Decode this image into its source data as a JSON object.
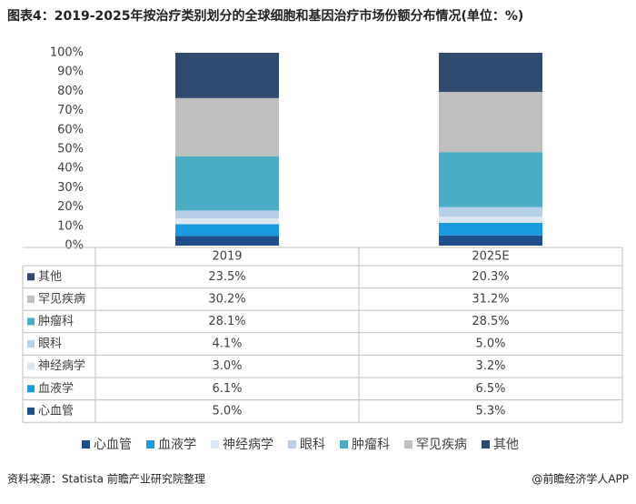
{
  "chart_data": {
    "type": "stacked_bar",
    "title": "图表4：2019-2025年按治疗类别划分的全球细胞和基因治疗市场份额分布情况(单位：%)",
    "categories": [
      "2019",
      "2025E"
    ],
    "series": [
      {
        "name": "心血管",
        "color": "#1f4e8c",
        "values": [
          5.0,
          5.3
        ],
        "value_labels": [
          "5.0%",
          "5.3%"
        ]
      },
      {
        "name": "血液学",
        "color": "#1a9be0",
        "values": [
          6.1,
          6.5
        ],
        "value_labels": [
          "6.1%",
          "6.5%"
        ]
      },
      {
        "name": "神经病学",
        "color": "#dde7f3",
        "values": [
          3.0,
          3.2
        ],
        "value_labels": [
          "3.0%",
          "3.2%"
        ]
      },
      {
        "name": "眼科",
        "color": "#b7cfe9",
        "values": [
          4.1,
          5.0
        ],
        "value_labels": [
          "4.1%",
          "5.0%"
        ]
      },
      {
        "name": "肿瘤科",
        "color": "#4bacc6",
        "values": [
          28.1,
          28.5
        ],
        "value_labels": [
          "28.1%",
          "28.5%"
        ]
      },
      {
        "name": "罕见疾病",
        "color": "#bfbfbf",
        "values": [
          30.2,
          31.2
        ],
        "value_labels": [
          "30.2%",
          "31.2%"
        ]
      },
      {
        "name": "其他",
        "color": "#2e4a6e",
        "values": [
          23.5,
          20.3
        ],
        "value_labels": [
          "23.5%",
          "20.3%"
        ]
      }
    ],
    "ylim": [
      0,
      100
    ],
    "yticks": [
      {
        "value": 0,
        "label": "0%"
      },
      {
        "value": 10,
        "label": "10%"
      },
      {
        "value": 20,
        "label": "20%"
      },
      {
        "value": 30,
        "label": "30%"
      },
      {
        "value": 40,
        "label": "40%"
      },
      {
        "value": 50,
        "label": "50%"
      },
      {
        "value": 60,
        "label": "60%"
      },
      {
        "value": 70,
        "label": "70%"
      },
      {
        "value": 80,
        "label": "80%"
      },
      {
        "value": 90,
        "label": "90%"
      },
      {
        "value": 100,
        "label": "100%"
      }
    ]
  },
  "footer": {
    "source": "资料来源：Statista 前瞻产业研究院整理",
    "brand": "@前瞻经济学人APP"
  }
}
